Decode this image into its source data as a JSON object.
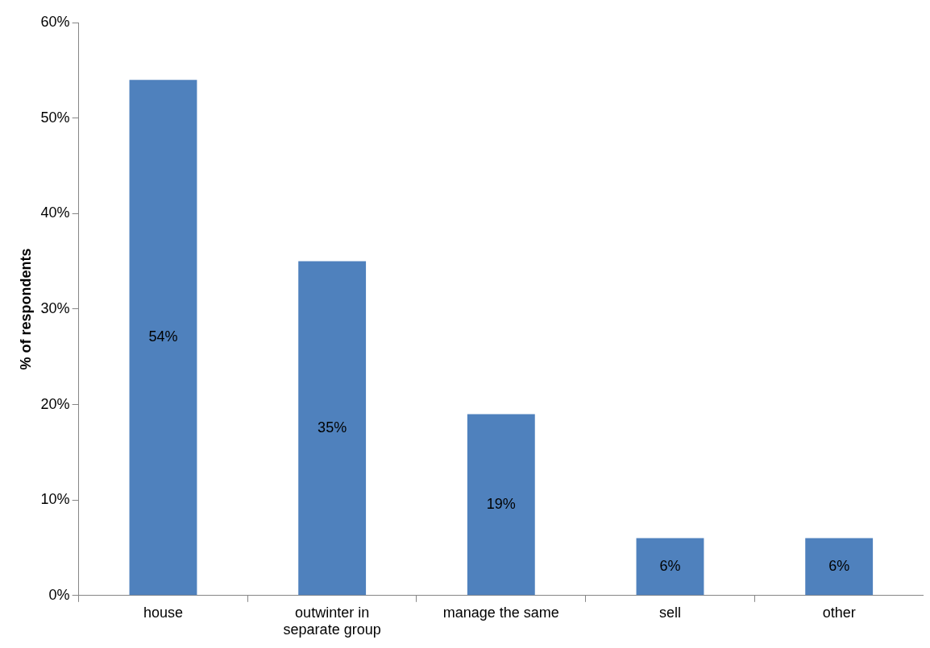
{
  "chart_data": {
    "type": "bar",
    "ylabel": "% of respondents",
    "categories": [
      "house",
      "outwinter in separate group",
      "manage the same",
      "sell",
      "other"
    ],
    "values": [
      54,
      35,
      19,
      6,
      6
    ],
    "color": "#4f81bd",
    "value_labels": [
      "54%",
      "35%",
      "19%",
      "6%",
      "6%"
    ],
    "ylim": [
      0,
      60
    ],
    "yticks": [
      {
        "value": 0,
        "label": "0%"
      },
      {
        "value": 10,
        "label": "10%"
      },
      {
        "value": 20,
        "label": "20%"
      },
      {
        "value": 30,
        "label": "30%"
      },
      {
        "value": 40,
        "label": "40%"
      },
      {
        "value": 50,
        "label": "50%"
      },
      {
        "value": 60,
        "label": "60%"
      }
    ],
    "grid": false,
    "legend": false
  }
}
